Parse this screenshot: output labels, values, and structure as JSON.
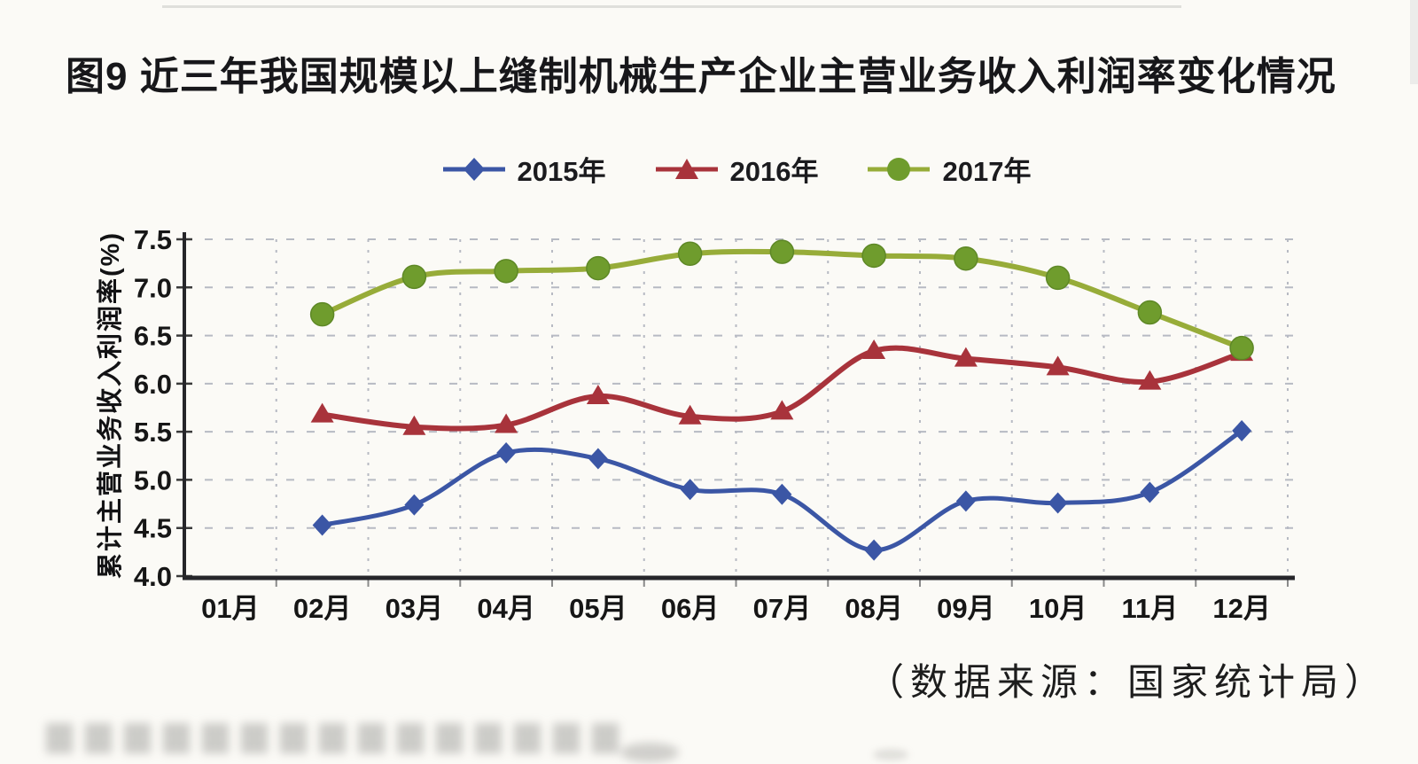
{
  "title": "图9 近三年我国规模以上缝制机械生产企业主营业务收入利润率变化情况",
  "source_note": "（数据来源：国家统计局）",
  "colors": {
    "series_2015": "#3b56a5",
    "series_2016": "#a8333b",
    "series_2017": "#97ac39",
    "marker_2017": "#6f9c2d",
    "grid": "#b7bac3",
    "axis": "#26262a",
    "tick_text": "#161616"
  },
  "chart_data": {
    "type": "line",
    "title": "图9 近三年我国规模以上缝制机械生产企业主营业务收入利润率变化情况",
    "ylabel": "累计主营业务收入利润率(%)",
    "xlabel": "",
    "categories": [
      "01月",
      "02月",
      "03月",
      "04月",
      "05月",
      "06月",
      "07月",
      "08月",
      "09月",
      "10月",
      "11月",
      "12月"
    ],
    "ylim": [
      4.0,
      7.5
    ],
    "ytick_step": 0.5,
    "grid": true,
    "legend_position": "top",
    "source": "（数据来源：国家统计局）",
    "series": [
      {
        "name": "2015年",
        "marker": "diamond",
        "color": "#3b56a5",
        "start_category_index": 1,
        "values": [
          4.53,
          4.74,
          5.28,
          5.22,
          4.9,
          4.85,
          4.27,
          4.78,
          4.76,
          4.87,
          5.51
        ]
      },
      {
        "name": "2016年",
        "marker": "triangle",
        "color": "#a8333b",
        "start_category_index": 1,
        "values": [
          5.68,
          5.55,
          5.57,
          5.87,
          5.66,
          5.71,
          6.34,
          6.26,
          6.17,
          6.02,
          6.32
        ]
      },
      {
        "name": "2017年",
        "marker": "circle",
        "color": "#97ac39",
        "marker_color": "#6f9c2d",
        "start_category_index": 1,
        "values": [
          6.72,
          7.11,
          7.17,
          7.2,
          7.35,
          7.37,
          7.33,
          7.3,
          7.1,
          6.74,
          6.37
        ]
      }
    ]
  }
}
